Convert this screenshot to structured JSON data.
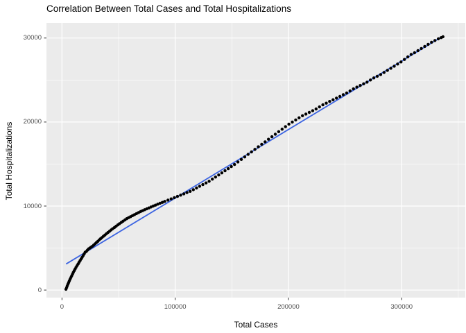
{
  "title": "Correlation Between Total Cases and Total Hospitalizations",
  "colors": {
    "panel_bg": "#EBEBEB",
    "grid_major": "#FFFFFF",
    "grid_minor": "#FFFFFF",
    "point": "#000000",
    "smooth_line": "#3C64E1",
    "tick_mark": "#333333",
    "tick_label": "#4D4D4D",
    "title_color": "#000000"
  },
  "chart_data": {
    "type": "scatter",
    "title": "Correlation Between Total Cases and Total Hospitalizations",
    "xlabel": "Total Cases",
    "ylabel": "Total Hospitalizations",
    "xlim": [
      -13700,
      356200
    ],
    "ylim": [
      -900,
      31800
    ],
    "x_ticks": [
      0,
      100000,
      200000,
      300000
    ],
    "y_ticks": [
      0,
      10000,
      20000,
      30000
    ],
    "x_minor_ticks": [
      50000,
      150000,
      250000,
      350000
    ],
    "y_minor_ticks": [
      5000,
      15000,
      25000
    ],
    "grid": true,
    "legend": false,
    "series": [
      {
        "name": "observations",
        "type": "scatter",
        "color": "#000000",
        "points": [
          [
            3500,
            100
          ],
          [
            4100,
            300
          ],
          [
            4700,
            500
          ],
          [
            5300,
            700
          ],
          [
            5900,
            900
          ],
          [
            6500,
            1100
          ],
          [
            7200,
            1300
          ],
          [
            7900,
            1500
          ],
          [
            8600,
            1700
          ],
          [
            9300,
            1900
          ],
          [
            10000,
            2100
          ],
          [
            10800,
            2300
          ],
          [
            11600,
            2500
          ],
          [
            12400,
            2700
          ],
          [
            13300,
            2900
          ],
          [
            14200,
            3100
          ],
          [
            15100,
            3300
          ],
          [
            16000,
            3500
          ],
          [
            16900,
            3700
          ],
          [
            17800,
            3900
          ],
          [
            18700,
            4100
          ],
          [
            19600,
            4300
          ],
          [
            20500,
            4500
          ],
          [
            21500,
            4600
          ],
          [
            22500,
            4750
          ],
          [
            23500,
            4900
          ],
          [
            24600,
            5000
          ],
          [
            25700,
            5100
          ],
          [
            26800,
            5200
          ],
          [
            28000,
            5350
          ],
          [
            29200,
            5500
          ],
          [
            30400,
            5650
          ],
          [
            31600,
            5800
          ],
          [
            32800,
            5950
          ],
          [
            34000,
            6100
          ],
          [
            35300,
            6250
          ],
          [
            36600,
            6400
          ],
          [
            37900,
            6550
          ],
          [
            39200,
            6700
          ],
          [
            40600,
            6850
          ],
          [
            42000,
            7000
          ],
          [
            43400,
            7150
          ],
          [
            44800,
            7300
          ],
          [
            46300,
            7450
          ],
          [
            47800,
            7600
          ],
          [
            49300,
            7750
          ],
          [
            50800,
            7900
          ],
          [
            52400,
            8050
          ],
          [
            54000,
            8200
          ],
          [
            55600,
            8350
          ],
          [
            57200,
            8500
          ],
          [
            58900,
            8620
          ],
          [
            60600,
            8740
          ],
          [
            62300,
            8860
          ],
          [
            64000,
            8980
          ],
          [
            65800,
            9100
          ],
          [
            67600,
            9220
          ],
          [
            69400,
            9340
          ],
          [
            71200,
            9450
          ],
          [
            73000,
            9560
          ],
          [
            74900,
            9670
          ],
          [
            76800,
            9780
          ],
          [
            78700,
            9890
          ],
          [
            80600,
            10000
          ],
          [
            82600,
            10110
          ],
          [
            84600,
            10220
          ],
          [
            86600,
            10330
          ],
          [
            88700,
            10440
          ],
          [
            90800,
            10550
          ],
          [
            93600,
            10700
          ],
          [
            96400,
            10850
          ],
          [
            99200,
            11000
          ],
          [
            102000,
            11150
          ],
          [
            104800,
            11300
          ],
          [
            107600,
            11450
          ],
          [
            110400,
            11600
          ],
          [
            113200,
            11750
          ],
          [
            116000,
            11950
          ],
          [
            118800,
            12150
          ],
          [
            121600,
            12350
          ],
          [
            124400,
            12550
          ],
          [
            127200,
            12750
          ],
          [
            130000,
            12950
          ],
          [
            132800,
            13200
          ],
          [
            135600,
            13450
          ],
          [
            138400,
            13700
          ],
          [
            141200,
            13950
          ],
          [
            144000,
            14200
          ],
          [
            146800,
            14450
          ],
          [
            149600,
            14700
          ],
          [
            152400,
            14950
          ],
          [
            155400,
            15250
          ],
          [
            158400,
            15550
          ],
          [
            161400,
            15850
          ],
          [
            164400,
            16150
          ],
          [
            167400,
            16450
          ],
          [
            170400,
            16750
          ],
          [
            173400,
            17050
          ],
          [
            176400,
            17350
          ],
          [
            179400,
            17650
          ],
          [
            182400,
            17950
          ],
          [
            185400,
            18250
          ],
          [
            188400,
            18550
          ],
          [
            191400,
            18850
          ],
          [
            194400,
            19150
          ],
          [
            197400,
            19450
          ],
          [
            200400,
            19750
          ],
          [
            203400,
            20000
          ],
          [
            206400,
            20250
          ],
          [
            209400,
            20500
          ],
          [
            212400,
            20750
          ],
          [
            215400,
            20950
          ],
          [
            218400,
            21150
          ],
          [
            221400,
            21350
          ],
          [
            224400,
            21550
          ],
          [
            227400,
            21800
          ],
          [
            230400,
            22050
          ],
          [
            233400,
            22250
          ],
          [
            236400,
            22450
          ],
          [
            239400,
            22650
          ],
          [
            242400,
            22850
          ],
          [
            245400,
            23050
          ],
          [
            248400,
            23250
          ],
          [
            251400,
            23450
          ],
          [
            254400,
            23700
          ],
          [
            257400,
            23950
          ],
          [
            260400,
            24150
          ],
          [
            263400,
            24350
          ],
          [
            266400,
            24550
          ],
          [
            269400,
            24750
          ],
          [
            272400,
            25000
          ],
          [
            275400,
            25250
          ],
          [
            278400,
            25450
          ],
          [
            281400,
            25650
          ],
          [
            284400,
            25900
          ],
          [
            287400,
            26150
          ],
          [
            290400,
            26400
          ],
          [
            293400,
            26650
          ],
          [
            296400,
            26900
          ],
          [
            299400,
            27150
          ],
          [
            302400,
            27450
          ],
          [
            305400,
            27750
          ],
          [
            308400,
            28050
          ],
          [
            311400,
            28250
          ],
          [
            314400,
            28500
          ],
          [
            317400,
            28750
          ],
          [
            320400,
            29000
          ],
          [
            323400,
            29250
          ],
          [
            326400,
            29500
          ],
          [
            329400,
            29700
          ],
          [
            332400,
            29900
          ],
          [
            334900,
            30050
          ],
          [
            336500,
            30150
          ]
        ]
      },
      {
        "name": "linear-fit",
        "type": "line",
        "color": "#3C64E1",
        "points": [
          [
            4000,
            3130
          ],
          [
            336500,
            30230
          ]
        ]
      }
    ]
  }
}
